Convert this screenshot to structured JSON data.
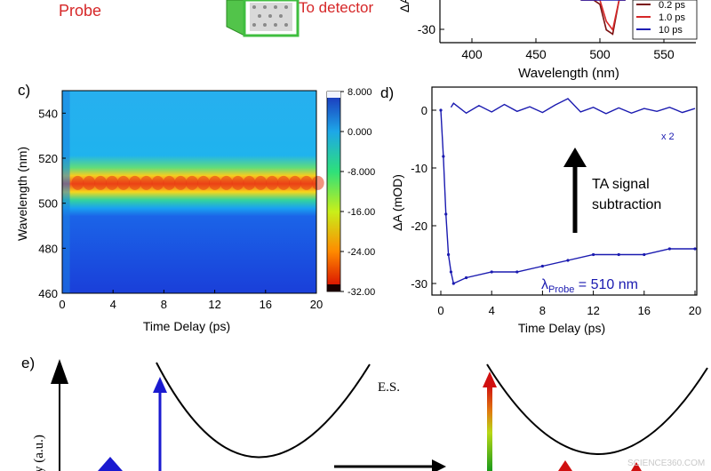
{
  "top_left": {
    "probe_label": "Probe",
    "detector_label": "To detector"
  },
  "top_right": {
    "ylabel": "ΔA",
    "xlabel": "Wavelength (nm)",
    "y_ticks": [
      "-30"
    ],
    "x_ticks": [
      "400",
      "450",
      "500",
      "550"
    ],
    "legend": [
      {
        "label": "0.2 ps",
        "color": "#7a1010"
      },
      {
        "label": "1.0 ps",
        "color": "#d62728"
      },
      {
        "label": "10 ps",
        "color": "#1f1fb4"
      }
    ]
  },
  "panel_c": {
    "label": "c)",
    "xlabel": "Time Delay (ps)",
    "ylabel": "Wavelength (nm)",
    "x_ticks": [
      "0",
      "4",
      "8",
      "12",
      "16",
      "20"
    ],
    "y_ticks": [
      "460",
      "480",
      "500",
      "520",
      "540"
    ],
    "colorbar_ticks": [
      "8.000",
      "0.000",
      "-8.000",
      "-16.00",
      "-24.00",
      "-32.00"
    ]
  },
  "panel_d": {
    "label": "d)",
    "xlabel": "Time Delay (ps)",
    "ylabel": "ΔA (mOD)",
    "x_ticks": [
      "0",
      "4",
      "8",
      "12",
      "16",
      "20"
    ],
    "y_ticks": [
      "0",
      "-10",
      "-20",
      "-30"
    ],
    "scale_note": "x 2",
    "annotation_line1": "TA signal",
    "annotation_line2": "subtraction",
    "probe_symbol": "λ",
    "probe_sub": "Probe",
    "probe_value": " = 510 nm"
  },
  "panel_e": {
    "label": "e)",
    "ylabel_fragment": "y (a.u.)",
    "es_label": "E.S."
  },
  "watermark": "SCIENCE360.COM",
  "chart_data": [
    {
      "type": "line",
      "title": "",
      "xlabel": "Wavelength (nm)",
      "ylabel": "ΔA",
      "xlim": [
        375,
        575
      ],
      "series": [
        {
          "name": "0.2 ps",
          "x": [
            485,
            495,
            500,
            505,
            510,
            515,
            520
          ],
          "y": [
            -3,
            -12,
            -24,
            -30,
            -31,
            -22,
            -4
          ]
        },
        {
          "name": "1.0 ps",
          "x": [
            485,
            495,
            500,
            505,
            510,
            515,
            520
          ],
          "y": [
            -2,
            -10,
            -21,
            -28,
            -30,
            -20,
            -3
          ]
        },
        {
          "name": "10 ps",
          "x": [
            485,
            495,
            500,
            505,
            510,
            515,
            520
          ],
          "y": [
            -1,
            -6,
            -14,
            -20,
            -22,
            -14,
            -2
          ]
        }
      ]
    },
    {
      "type": "heatmap",
      "title": "",
      "xlabel": "Time Delay (ps)",
      "ylabel": "Wavelength (nm)",
      "xlim": [
        0,
        20
      ],
      "ylim": [
        460,
        550
      ],
      "colorbar_range": [
        -32,
        8
      ]
    },
    {
      "type": "scatter",
      "title": "",
      "xlabel": "Time Delay (ps)",
      "ylabel": "ΔA (mOD)",
      "xlim": [
        0,
        20
      ],
      "ylim": [
        -32,
        4
      ],
      "series": [
        {
          "name": "",
          "x": [
            0,
            0.2,
            0.4,
            0.6,
            0.8,
            1.0,
            2,
            4,
            6,
            8,
            10,
            12,
            14,
            16,
            18,
            20
          ],
          "y": [
            0,
            -8,
            -18,
            -25,
            -28,
            -30,
            -29,
            -28,
            -28,
            -27,
            -26,
            -25,
            -25,
            -25,
            -24,
            -24
          ]
        },
        {
          "name": "",
          "x": [
            0.8,
            1,
            2,
            3,
            4,
            5,
            6,
            7,
            8,
            9,
            10,
            11,
            12,
            13,
            14,
            15,
            16,
            17,
            18,
            19,
            20
          ],
          "y": [
            0.5,
            1.2,
            -0.5,
            0.8,
            -0.3,
            1.0,
            -0.2,
            0.6,
            -0.4,
            0.9,
            2.0,
            -0.3,
            0.5,
            -0.6,
            0.4,
            -0.5,
            0.3,
            -0.2,
            0.5,
            -0.4,
            0.3
          ]
        }
      ]
    }
  ]
}
